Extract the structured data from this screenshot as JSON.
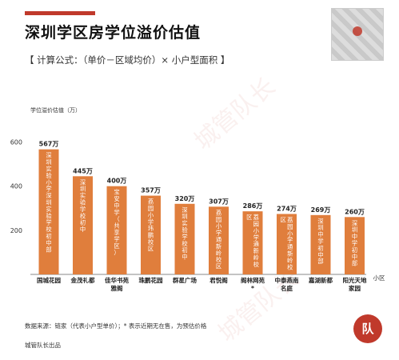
{
  "header": {
    "title": "深圳学区房学位溢价估值",
    "formula": "【 计算公式：（单价－区域均价）× 小户型面积 】"
  },
  "chart_data": {
    "type": "bar",
    "ylabel": "学位溢价估值（万）",
    "xlabel": "小区",
    "ylim": [
      0,
      700
    ],
    "yticks": [
      200,
      400,
      600
    ],
    "grid": false,
    "bar_color": "#e07e3c",
    "categories": [
      "国城花园",
      "金茂礼都",
      "佳华书苑雅阁",
      "珠鹏花园",
      "群星广场",
      "君悦阁",
      "阁林网苑*",
      "中泰燕南名庭",
      "嘉湖新都",
      "阳光天地家园"
    ],
    "values": [
      567,
      445,
      400,
      357,
      320,
      307,
      286,
      274,
      269,
      260
    ],
    "value_labels": [
      "567万",
      "445万",
      "400万",
      "357万",
      "320万",
      "307万",
      "286万",
      "274万",
      "269万",
      "260万"
    ],
    "bar_texts": [
      "深圳实验小学深圳实验学校初中部",
      "深圳实验学校初中",
      "宝安中学（共享学区）",
      "荔园小学玮鹏校区",
      "深圳实验学校初中",
      "荔园小学通新岭校区",
      "荔园小学通新岭校区",
      "荔园小学通新岭校区",
      "深圳中学初中部",
      "深圳中学初中部"
    ]
  },
  "footer": {
    "source": "数据来源：链家（代表小户型单价）；* 表示近期无在售，为预估价格",
    "credit": "城管队长出品",
    "logo_text": "队"
  },
  "watermark": "城管队长"
}
